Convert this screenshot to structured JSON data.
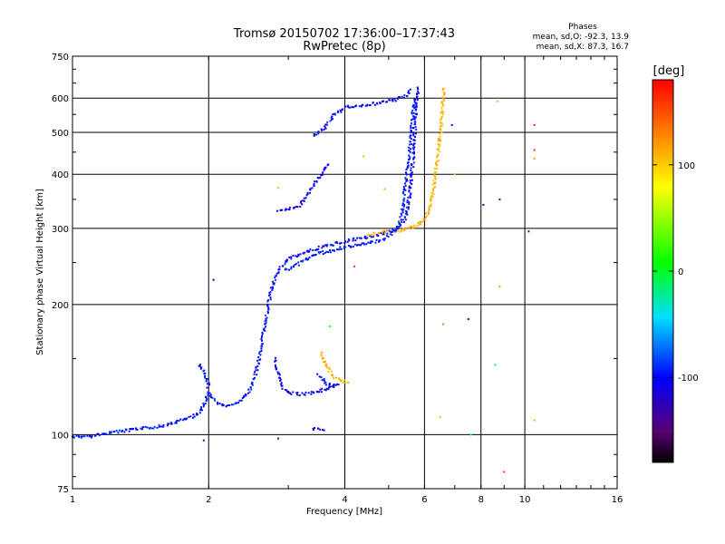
{
  "chart_data": {
    "type": "scatter",
    "title": "Tromsø 20150702 17:36:00–17:37:43",
    "subtitle": "RwPretec (8p)",
    "xlabel": "Frequency [MHz]",
    "ylabel": "Stationary phase Virtual Height [km]",
    "x_scale": "log",
    "y_scale": "log",
    "xlim": [
      1,
      16
    ],
    "ylim": [
      75,
      750
    ],
    "x_ticks": [
      1,
      2,
      4,
      6,
      8,
      10,
      16
    ],
    "y_ticks": [
      75,
      100,
      200,
      300,
      400,
      500,
      600,
      750
    ],
    "grid": true,
    "phases_box": {
      "title": "Phases",
      "line_o": "mean, sd,O: -92.3, 13.9",
      "line_x": "mean, sd,X:  87.3, 16.7"
    },
    "colorbar": {
      "label": "[deg]",
      "range": [
        -180,
        180
      ],
      "ticks": [
        100,
        0,
        -100
      ],
      "colormap": "rainbow (black-purple-blue-cyan-green-yellow-red)"
    },
    "traces": [
      {
        "phase": -95,
        "points": [
          [
            1.0,
            99
          ],
          [
            1.1,
            99
          ],
          [
            1.2,
            101
          ],
          [
            1.3,
            102
          ],
          [
            1.4,
            103
          ],
          [
            1.5,
            104
          ],
          [
            1.6,
            105
          ],
          [
            1.7,
            107
          ],
          [
            1.8,
            109
          ],
          [
            1.9,
            112
          ],
          [
            1.95,
            117
          ],
          [
            2.0,
            125
          ],
          [
            2.1,
            118
          ],
          [
            2.2,
            116
          ],
          [
            2.3,
            118
          ],
          [
            2.4,
            122
          ],
          [
            2.5,
            130
          ],
          [
            2.55,
            140
          ],
          [
            2.6,
            155
          ],
          [
            2.65,
            175
          ],
          [
            2.7,
            195
          ],
          [
            2.75,
            215
          ],
          [
            2.8,
            230
          ]
        ]
      },
      {
        "phase": -100,
        "points": [
          [
            1.9,
            145
          ],
          [
            1.95,
            140
          ],
          [
            1.98,
            135
          ],
          [
            2.0,
            128
          ]
        ]
      },
      {
        "phase": -100,
        "points": [
          [
            2.8,
            230
          ],
          [
            2.9,
            245
          ],
          [
            3.0,
            255
          ],
          [
            3.2,
            262
          ],
          [
            3.4,
            268
          ],
          [
            3.6,
            272
          ],
          [
            3.8,
            276
          ],
          [
            4.0,
            280
          ],
          [
            4.3,
            284
          ],
          [
            4.6,
            288
          ],
          [
            4.9,
            292
          ],
          [
            5.2,
            300
          ],
          [
            5.4,
            310
          ],
          [
            5.5,
            330
          ],
          [
            5.6,
            380
          ],
          [
            5.7,
            480
          ],
          [
            5.75,
            560
          ],
          [
            5.8,
            640
          ]
        ]
      },
      {
        "phase": -95,
        "points": [
          [
            2.95,
            240
          ],
          [
            3.1,
            245
          ],
          [
            3.3,
            255
          ],
          [
            3.5,
            262
          ],
          [
            3.8,
            268
          ],
          [
            4.1,
            272
          ],
          [
            4.4,
            276
          ],
          [
            4.8,
            281
          ],
          [
            5.0,
            288
          ],
          [
            5.2,
            298
          ],
          [
            5.35,
            320
          ],
          [
            5.45,
            380
          ],
          [
            5.55,
            440
          ],
          [
            5.6,
            480
          ],
          [
            5.65,
            540
          ],
          [
            5.7,
            600
          ]
        ]
      },
      {
        "phase": -105,
        "points": [
          [
            2.8,
            150
          ],
          [
            2.85,
            138
          ],
          [
            2.9,
            130
          ],
          [
            3.0,
            125
          ],
          [
            3.2,
            124
          ],
          [
            3.4,
            125
          ],
          [
            3.6,
            127
          ],
          [
            3.8,
            130
          ],
          [
            3.9,
            132
          ]
        ]
      },
      {
        "phase": -100,
        "points": [
          [
            3.5,
            138
          ],
          [
            3.6,
            133
          ],
          [
            3.7,
            130
          ],
          [
            3.8,
            131
          ]
        ]
      },
      {
        "phase": 110,
        "points": [
          [
            3.55,
            155
          ],
          [
            3.6,
            148
          ],
          [
            3.7,
            140
          ],
          [
            3.8,
            136
          ],
          [
            3.9,
            134
          ],
          [
            4.0,
            133
          ],
          [
            4.1,
            132
          ]
        ]
      },
      {
        "phase": -100,
        "points": [
          [
            3.4,
            103
          ],
          [
            3.5,
            103
          ],
          [
            3.6,
            103
          ]
        ]
      },
      {
        "phase": -105,
        "points": [
          [
            2.85,
            330
          ],
          [
            3.0,
            332
          ],
          [
            3.2,
            340
          ],
          [
            3.3,
            360
          ],
          [
            3.4,
            375
          ],
          [
            3.5,
            390
          ],
          [
            3.6,
            410
          ],
          [
            3.7,
            425
          ]
        ]
      },
      {
        "phase": -100,
        "points": [
          [
            3.4,
            490
          ],
          [
            3.5,
            500
          ],
          [
            3.6,
            510
          ],
          [
            3.7,
            530
          ],
          [
            3.8,
            550
          ],
          [
            3.9,
            560
          ],
          [
            4.0,
            570
          ],
          [
            4.2,
            575
          ],
          [
            4.5,
            580
          ],
          [
            4.8,
            585
          ],
          [
            5.0,
            590
          ],
          [
            5.2,
            595
          ],
          [
            5.5,
            610
          ],
          [
            5.6,
            630
          ]
        ]
      },
      {
        "phase": 110,
        "points": [
          [
            5.2,
            295
          ],
          [
            5.5,
            300
          ],
          [
            5.8,
            305
          ],
          [
            6.0,
            315
          ],
          [
            6.2,
            340
          ],
          [
            6.3,
            380
          ],
          [
            6.4,
            430
          ],
          [
            6.5,
            490
          ],
          [
            6.55,
            540
          ],
          [
            6.6,
            600
          ],
          [
            6.6,
            640
          ]
        ]
      },
      {
        "phase": 110,
        "points": [
          [
            4.5,
            290
          ],
          [
            4.8,
            292
          ],
          [
            5.0,
            295
          ]
        ]
      }
    ],
    "scatter_points": [
      {
        "x": 2.05,
        "y": 228,
        "phase": -100
      },
      {
        "x": 1.95,
        "y": 97,
        "phase": -120
      },
      {
        "x": 2.85,
        "y": 98,
        "phase": -130
      },
      {
        "x": 2.85,
        "y": 372,
        "phase": 110
      },
      {
        "x": 3.7,
        "y": 178,
        "phase": 10
      },
      {
        "x": 4.2,
        "y": 245,
        "phase": 160
      },
      {
        "x": 4.4,
        "y": 440,
        "phase": 110
      },
      {
        "x": 4.9,
        "y": 370,
        "phase": 110
      },
      {
        "x": 6.5,
        "y": 110,
        "phase": 110
      },
      {
        "x": 6.6,
        "y": 180,
        "phase": 130
      },
      {
        "x": 6.9,
        "y": 520,
        "phase": -100
      },
      {
        "x": 7.0,
        "y": 400,
        "phase": 100
      },
      {
        "x": 7.5,
        "y": 185,
        "phase": -140
      },
      {
        "x": 7.6,
        "y": 100,
        "phase": -40
      },
      {
        "x": 8.1,
        "y": 340,
        "phase": -120
      },
      {
        "x": 8.6,
        "y": 145,
        "phase": -10
      },
      {
        "x": 8.7,
        "y": 590,
        "phase": 110
      },
      {
        "x": 8.8,
        "y": 350,
        "phase": -120
      },
      {
        "x": 8.8,
        "y": 220,
        "phase": 120
      },
      {
        "x": 9.0,
        "y": 82,
        "phase": 160
      },
      {
        "x": 10.2,
        "y": 295,
        "phase": -150
      },
      {
        "x": 10.5,
        "y": 520,
        "phase": 170
      },
      {
        "x": 10.5,
        "y": 455,
        "phase": 160
      },
      {
        "x": 10.5,
        "y": 435,
        "phase": 120
      },
      {
        "x": 10.5,
        "y": 108,
        "phase": 30
      }
    ]
  }
}
